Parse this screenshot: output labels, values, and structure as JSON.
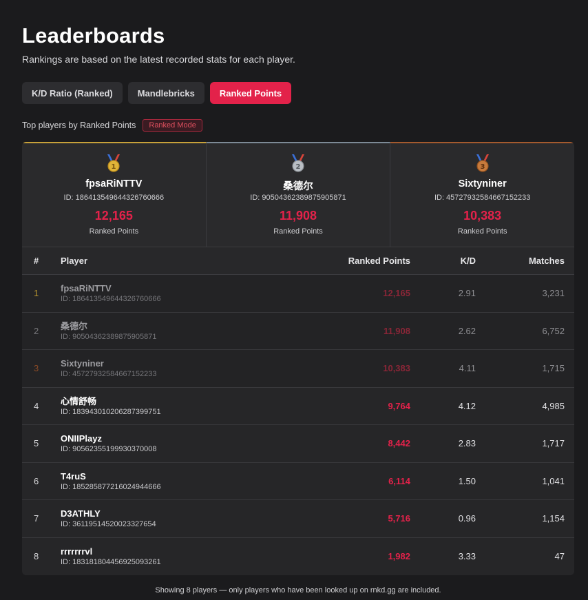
{
  "header": {
    "title": "Leaderboards",
    "subtitle": "Rankings are based on the latest recorded stats for each player."
  },
  "tabs": [
    {
      "label": "K/D Ratio (Ranked)",
      "active": false
    },
    {
      "label": "Mandlebricks",
      "active": false
    },
    {
      "label": "Ranked Points",
      "active": true
    }
  ],
  "caption": {
    "text": "Top players by Ranked Points",
    "badge": "Ranked Mode"
  },
  "podium": [
    {
      "medal": "gold-medal-icon",
      "medal_number": "1",
      "name": "fpsaRiNTTV",
      "id": "ID: 186413549644326760666",
      "points": "12,165",
      "points_label": "Ranked Points"
    },
    {
      "medal": "silver-medal-icon",
      "medal_number": "2",
      "name": "桑德尔",
      "id": "ID: 905043623898759058​71",
      "points": "11,908",
      "points_label": "Ranked Points"
    },
    {
      "medal": "bronze-medal-icon",
      "medal_number": "3",
      "name": "Sixtyniner",
      "id": "ID: 457279325846671522​33",
      "points": "10,383",
      "points_label": "Ranked Points"
    }
  ],
  "table": {
    "headers": {
      "rank": "#",
      "player": "Player",
      "points": "Ranked Points",
      "kd": "K/D",
      "matches": "Matches"
    },
    "rows": [
      {
        "rank": "1",
        "name": "fpsaRiNTTV",
        "id": "ID: 186413549644326760666",
        "points": "12,165",
        "kd": "2.91",
        "matches": "3,231"
      },
      {
        "rank": "2",
        "name": "桑德尔",
        "id": "ID: 90504362389875905871",
        "points": "11,908",
        "kd": "2.62",
        "matches": "6,752"
      },
      {
        "rank": "3",
        "name": "Sixtyniner",
        "id": "ID: 45727932584667152233",
        "points": "10,383",
        "kd": "4.11",
        "matches": "1,715"
      },
      {
        "rank": "4",
        "name": "心情舒畅",
        "id": "ID: 183943010206287399751",
        "points": "9,764",
        "kd": "4.12",
        "matches": "4,985"
      },
      {
        "rank": "5",
        "name": "ONIIPlayz",
        "id": "ID: 90562355199930370008",
        "points": "8,442",
        "kd": "2.83",
        "matches": "1,717"
      },
      {
        "rank": "6",
        "name": "T4ruS",
        "id": "ID: 185285877216024944666",
        "points": "6,114",
        "kd": "1.50",
        "matches": "1,041"
      },
      {
        "rank": "7",
        "name": "D3ATHLY",
        "id": "ID: 36119514520023327654",
        "points": "5,716",
        "kd": "0.96",
        "matches": "1,154"
      },
      {
        "rank": "8",
        "name": "rrrrrrrvl",
        "id": "ID: 183181804456925093261",
        "points": "1,982",
        "kd": "3.33",
        "matches": "47"
      }
    ]
  },
  "footer": "Showing 8 players — only players who have been looked up on rnkd.gg are included.",
  "colors": {
    "accent": "#e3224a",
    "gold": "#c7a13a",
    "silver": "#7d8a96",
    "bronze": "#a45a2e"
  }
}
